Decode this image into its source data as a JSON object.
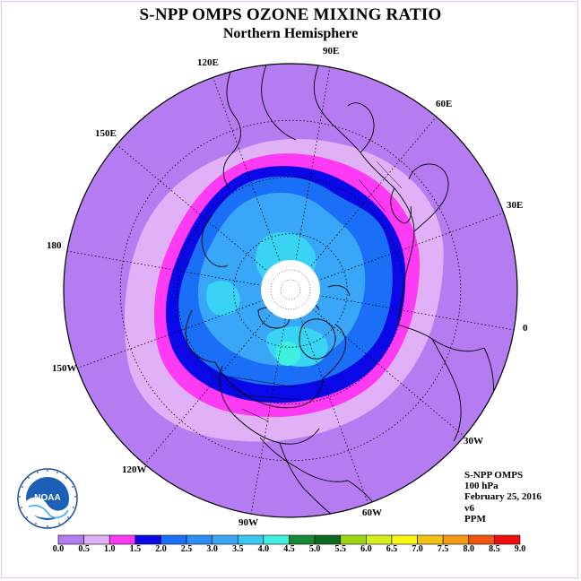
{
  "header": {
    "title": "S-NPP OMPS OZONE MIXING RATIO",
    "subtitle": "Northern Hemisphere"
  },
  "map": {
    "longitude_labels": [
      "90E",
      "60E",
      "30E",
      "0",
      "30W",
      "60W",
      "90W",
      "120W",
      "150W",
      "180",
      "150E",
      "120E"
    ],
    "colors": {
      "background": "#ffffff",
      "outer_purple": "#b57cf2",
      "lavender": "#e0b1f7",
      "magenta": "#ff3af5",
      "navy": "#0a08e6",
      "blue": "#1b6ff7",
      "sky": "#3aa6f8",
      "cyan": "#39d4f4",
      "teal": "#3df0df",
      "pole_cap": "#ffffff",
      "coast": "#000000"
    }
  },
  "info": {
    "instrument": "S-NPP OMPS",
    "level": "100 hPa",
    "date": "February 25, 2016",
    "version": "v6",
    "units": "PPM"
  },
  "colorbar": {
    "ticks": [
      "0.0",
      "0.5",
      "1.0",
      "1.5",
      "2.0",
      "2.5",
      "3.0",
      "3.5",
      "4.0",
      "4.5",
      "5.0",
      "5.5",
      "6.0",
      "6.5",
      "7.0",
      "7.5",
      "8.0",
      "8.5",
      "9.0"
    ],
    "colors": [
      "#b57cf2",
      "#e0b1f7",
      "#ff3af5",
      "#0a08e6",
      "#1b6ff7",
      "#2b8ff7",
      "#3aa6f8",
      "#39c8f4",
      "#3df0df",
      "#138a33",
      "#0a6a1f",
      "#9ed712",
      "#d6f01a",
      "#fbf613",
      "#f3c215",
      "#f29a12",
      "#f2560e",
      "#ee0e0e",
      "#8a5a3a"
    ]
  },
  "logo": {
    "text": "NOAA"
  }
}
